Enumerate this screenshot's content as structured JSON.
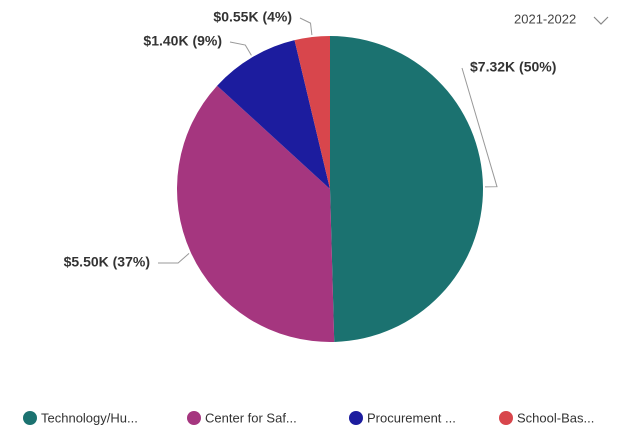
{
  "chart_data": {
    "type": "pie",
    "categories": [
      "Technology/Hu...",
      "Center for Saf...",
      "Procurement ...",
      "School-Bas..."
    ],
    "values": [
      7.32,
      5.5,
      1.4,
      0.55
    ],
    "value_labels": [
      "$7.32K (50%)",
      "$5.50K (37%)",
      "$1.40K (9%)",
      "$0.55K (4%)"
    ],
    "colors": [
      "#1b7270",
      "#a5367f",
      "#1c1c9e",
      "#d8464c"
    ],
    "filter": "2021-2022"
  }
}
